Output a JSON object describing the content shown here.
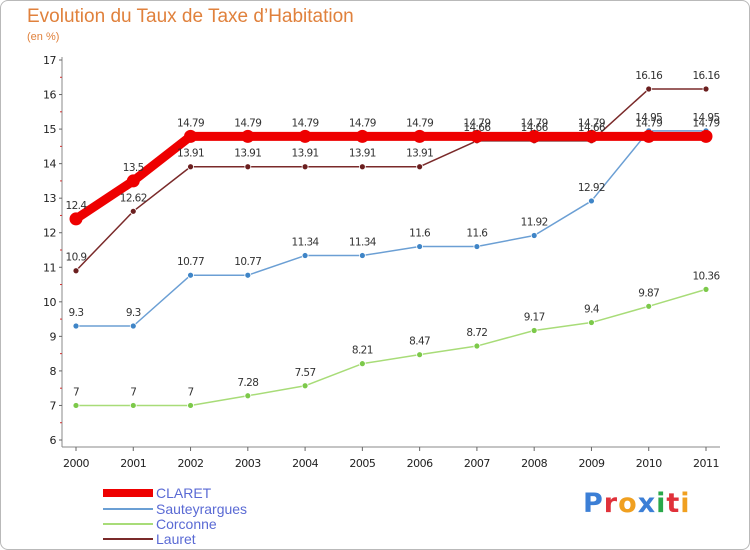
{
  "header": {
    "title": "Evolution du Taux de Taxe d’Habitation",
    "subtitle": "(en %)"
  },
  "logo": {
    "text": "Proxiti",
    "colors": [
      "#3c7fd6",
      "#e0313a",
      "#f0a020",
      "#3c7fd6",
      "#2aa84a",
      "#e0313a",
      "#f0a020"
    ]
  },
  "chart_data": {
    "type": "line",
    "title": "Evolution du Taux de Taxe d’Habitation",
    "ylabel": "(en %)",
    "xlabel": "",
    "x": [
      "2000",
      "2001",
      "2002",
      "2003",
      "2004",
      "2005",
      "2006",
      "2007",
      "2008",
      "2009",
      "2010",
      "2011"
    ],
    "ylim": [
      6,
      17
    ],
    "yticks": [
      6,
      7,
      8,
      9,
      10,
      11,
      12,
      13,
      14,
      15,
      16,
      17
    ],
    "grid": false,
    "legend": "bottom-left",
    "series": [
      {
        "name": "CLARET",
        "color": "#ee0000",
        "values": [
          12.4,
          13.5,
          14.79,
          14.79,
          14.79,
          14.79,
          14.79,
          14.79,
          14.79,
          14.79,
          14.79,
          14.79
        ],
        "labels": [
          "12.4",
          "13.5",
          "14.79",
          "14.79",
          "14.79",
          "14.79",
          "14.79",
          "14.79",
          "14.79",
          "14.79",
          "14.79",
          "14.79"
        ]
      },
      {
        "name": "Sauteyrargues",
        "color": "#6b9fd4",
        "marker": "#3f85c7",
        "values": [
          9.3,
          9.3,
          10.77,
          10.77,
          11.34,
          11.34,
          11.6,
          11.6,
          11.92,
          12.92,
          14.95,
          14.95
        ],
        "labels": [
          "9.3",
          "9.3",
          "10.77",
          "10.77",
          "11.34",
          "11.34",
          "11.6",
          "11.6",
          "11.92",
          "12.92",
          "14.95",
          "14.95"
        ]
      },
      {
        "name": "Corconne",
        "color": "#a8dc78",
        "marker": "#7cc94a",
        "values": [
          7,
          7,
          7,
          7.28,
          7.57,
          8.21,
          8.47,
          8.72,
          9.17,
          9.4,
          9.87,
          10.36
        ],
        "labels": [
          "7",
          "7",
          "7",
          "7.28",
          "7.57",
          "8.21",
          "8.47",
          "8.72",
          "9.17",
          "9.4",
          "9.87",
          "10.36"
        ]
      },
      {
        "name": "Lauret",
        "color": "#7a2a2a",
        "marker": "#6b1f1f",
        "values": [
          10.9,
          12.62,
          13.91,
          13.91,
          13.91,
          13.91,
          13.91,
          14.66,
          14.66,
          14.66,
          16.16,
          16.16
        ],
        "labels": [
          "10.9",
          "12.62",
          "13.91",
          "13.91",
          "13.91",
          "13.91",
          "13.91",
          "14.66",
          "14.66",
          "14.66",
          "16.16",
          "16.16"
        ]
      }
    ]
  }
}
